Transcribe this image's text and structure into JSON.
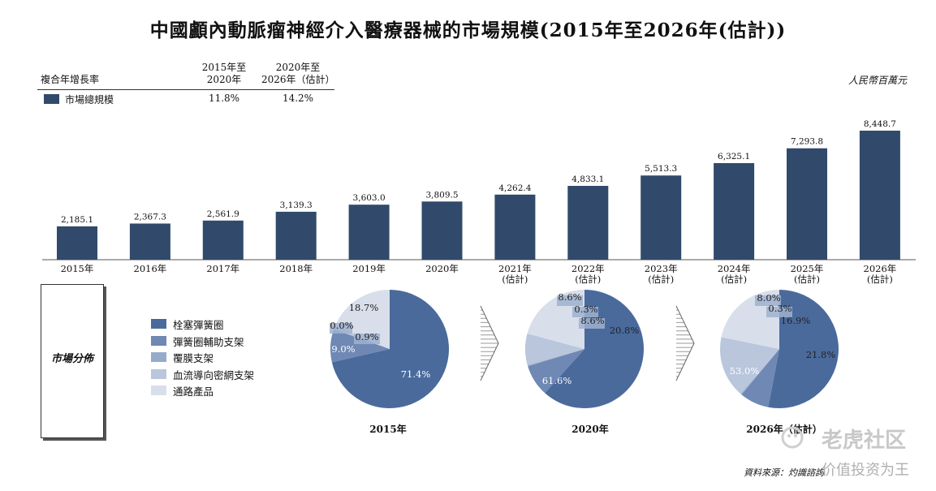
{
  "title": "中國顱內動脈瘤神經介入醫療器械的市場規模(2015年至2026年(估計))",
  "cagr_table": {
    "header_label": "複合年增長率",
    "col1_header": [
      "2015年至",
      "2020年"
    ],
    "col2_header": [
      "2020年至",
      "2026年（估計）"
    ],
    "series_name": "市場總規模",
    "col1_value": "11.8%",
    "col2_value": "14.2%"
  },
  "unit_label": "人民幣百萬元",
  "distribution_label": "市場分佈",
  "pie_legend": [
    {
      "label": "栓塞彈簧圈",
      "color": "#4a6a9c"
    },
    {
      "label": "彈簧圈輔助支架",
      "color": "#6f88b4"
    },
    {
      "label": "覆膜支架",
      "color": "#96abcb"
    },
    {
      "label": "血流導向密網支架",
      "color": "#b9c6dc"
    },
    {
      "label": "通路產品",
      "color": "#d8dfeb"
    }
  ],
  "chart_data": [
    {
      "type": "bar",
      "categories": [
        "2015年",
        "2016年",
        "2017年",
        "2018年",
        "2019年",
        "2020年",
        "2021年\n(估計)",
        "2022年\n(估計)",
        "2023年\n(估計)",
        "2024年\n(估計)",
        "2025年\n(估計)",
        "2026年\n(估計)"
      ],
      "values": [
        2185.1,
        2367.3,
        2561.9,
        3139.3,
        3603.0,
        3809.5,
        4262.4,
        4833.1,
        5513.3,
        6325.1,
        7293.8,
        8448.7
      ],
      "value_labels": [
        "2,185.1",
        "2,367.3",
        "2,561.9",
        "3,139.3",
        "3,603.0",
        "3,809.5",
        "4,262.4",
        "4,833.1",
        "5,513.3",
        "6,325.1",
        "7,293.8",
        "8,448.7"
      ],
      "bar_color": "#314a6b",
      "ylim": [
        0,
        9000
      ]
    },
    {
      "type": "pie",
      "title": "2015年",
      "labels": [
        "栓塞彈簧圈",
        "彈簧圈輔助支架",
        "覆膜支架",
        "血流導向密網支架",
        "通路產品"
      ],
      "values": [
        71.4,
        9.0,
        0.0,
        0.9,
        18.7
      ],
      "value_labels": [
        "71.4%",
        "9.0%",
        "0.0%",
        "0.9%",
        "18.7%"
      ]
    },
    {
      "type": "pie",
      "title": "2020年",
      "labels": [
        "栓塞彈簧圈",
        "彈簧圈輔助支架",
        "覆膜支架",
        "血流導向密網支架",
        "通路產品"
      ],
      "values": [
        61.6,
        8.6,
        0.3,
        8.6,
        20.8
      ],
      "value_labels": [
        "61.6%",
        "8.6%",
        "0.3%",
        "8.6%",
        "20.8%"
      ]
    },
    {
      "type": "pie",
      "title": "2026年（估計）",
      "labels": [
        "栓塞彈簧圈",
        "彈簧圈輔助支架",
        "覆膜支架",
        "血流導向密網支架",
        "通路產品"
      ],
      "values": [
        53.0,
        8.0,
        0.3,
        16.9,
        21.8
      ],
      "value_labels": [
        "53.0%",
        "8.0%",
        "0.3%",
        "16.9%",
        "21.8%"
      ]
    }
  ],
  "footer_source": "資料來源：灼識諮詢",
  "watermark": {
    "line1": "老虎社区",
    "line2": "价值投资为王"
  }
}
